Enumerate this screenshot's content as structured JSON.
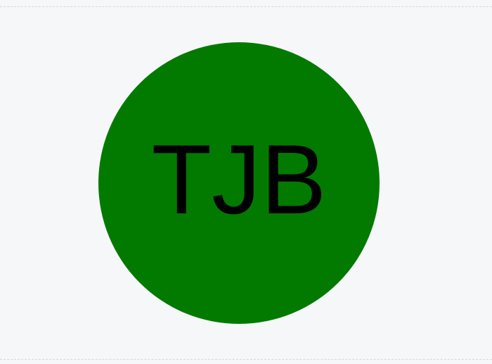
{
  "avatar": {
    "initials": "TJB",
    "background_color": "#027A00",
    "text_color": "#000000"
  }
}
